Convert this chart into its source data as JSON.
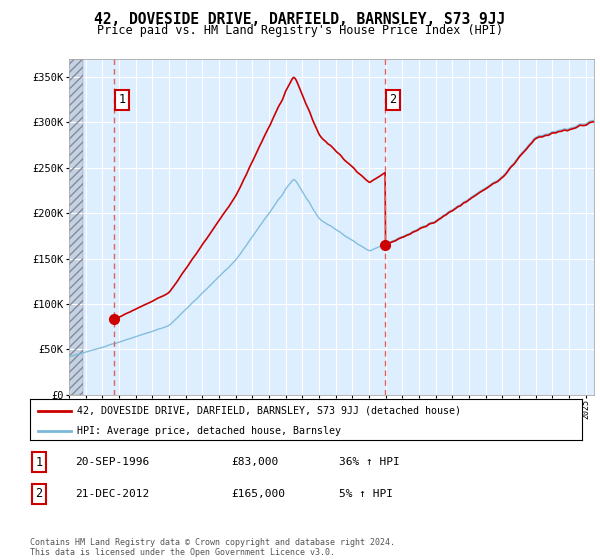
{
  "title": "42, DOVESIDE DRIVE, DARFIELD, BARNSLEY, S73 9JJ",
  "subtitle": "Price paid vs. HM Land Registry's House Price Index (HPI)",
  "ylim": [
    0,
    370000
  ],
  "xlim_start": 1994.0,
  "xlim_end": 2025.5,
  "transaction1_date": 1996.72,
  "transaction1_price": 83000,
  "transaction2_date": 2012.97,
  "transaction2_price": 165000,
  "legend_line1": "42, DOVESIDE DRIVE, DARFIELD, BARNSLEY, S73 9JJ (detached house)",
  "legend_line2": "HPI: Average price, detached house, Barnsley",
  "footer": "Contains HM Land Registry data © Crown copyright and database right 2024.\nThis data is licensed under the Open Government Licence v3.0.",
  "hpi_color": "#7ab8d9",
  "price_color": "#cc0000",
  "dashed_color": "#e06060",
  "chart_bg": "#ddeeff",
  "hatch_color": "#c8c8c8"
}
